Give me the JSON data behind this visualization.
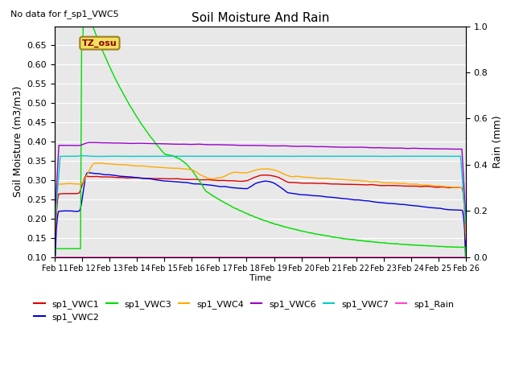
{
  "title": "Soil Moisture And Rain",
  "subtitle": "No data for f_sp1_VWC5",
  "xlabel": "Time",
  "ylabel_left": "Soil Moisture (m3/m3)",
  "ylabel_right": "Rain (mm)",
  "annotation": "TZ_osu",
  "ylim_left": [
    0.1,
    0.7
  ],
  "ylim_right": [
    0.0,
    1.0
  ],
  "yticks_left": [
    0.1,
    0.15,
    0.2,
    0.25,
    0.3,
    0.35,
    0.4,
    0.45,
    0.5,
    0.55,
    0.6,
    0.65
  ],
  "yticks_right": [
    0.0,
    0.2,
    0.4,
    0.6,
    0.8,
    1.0
  ],
  "colors": {
    "sp1_VWC1": "#dd0000",
    "sp1_VWC2": "#0000dd",
    "sp1_VWC3": "#00dd00",
    "sp1_VWC4": "#ffaa00",
    "sp1_VWC6": "#9900cc",
    "sp1_VWC7": "#00cccc",
    "sp1_Rain": "#ff44cc"
  },
  "background_color": "#e8e8e8",
  "grid_color": "#ffffff"
}
